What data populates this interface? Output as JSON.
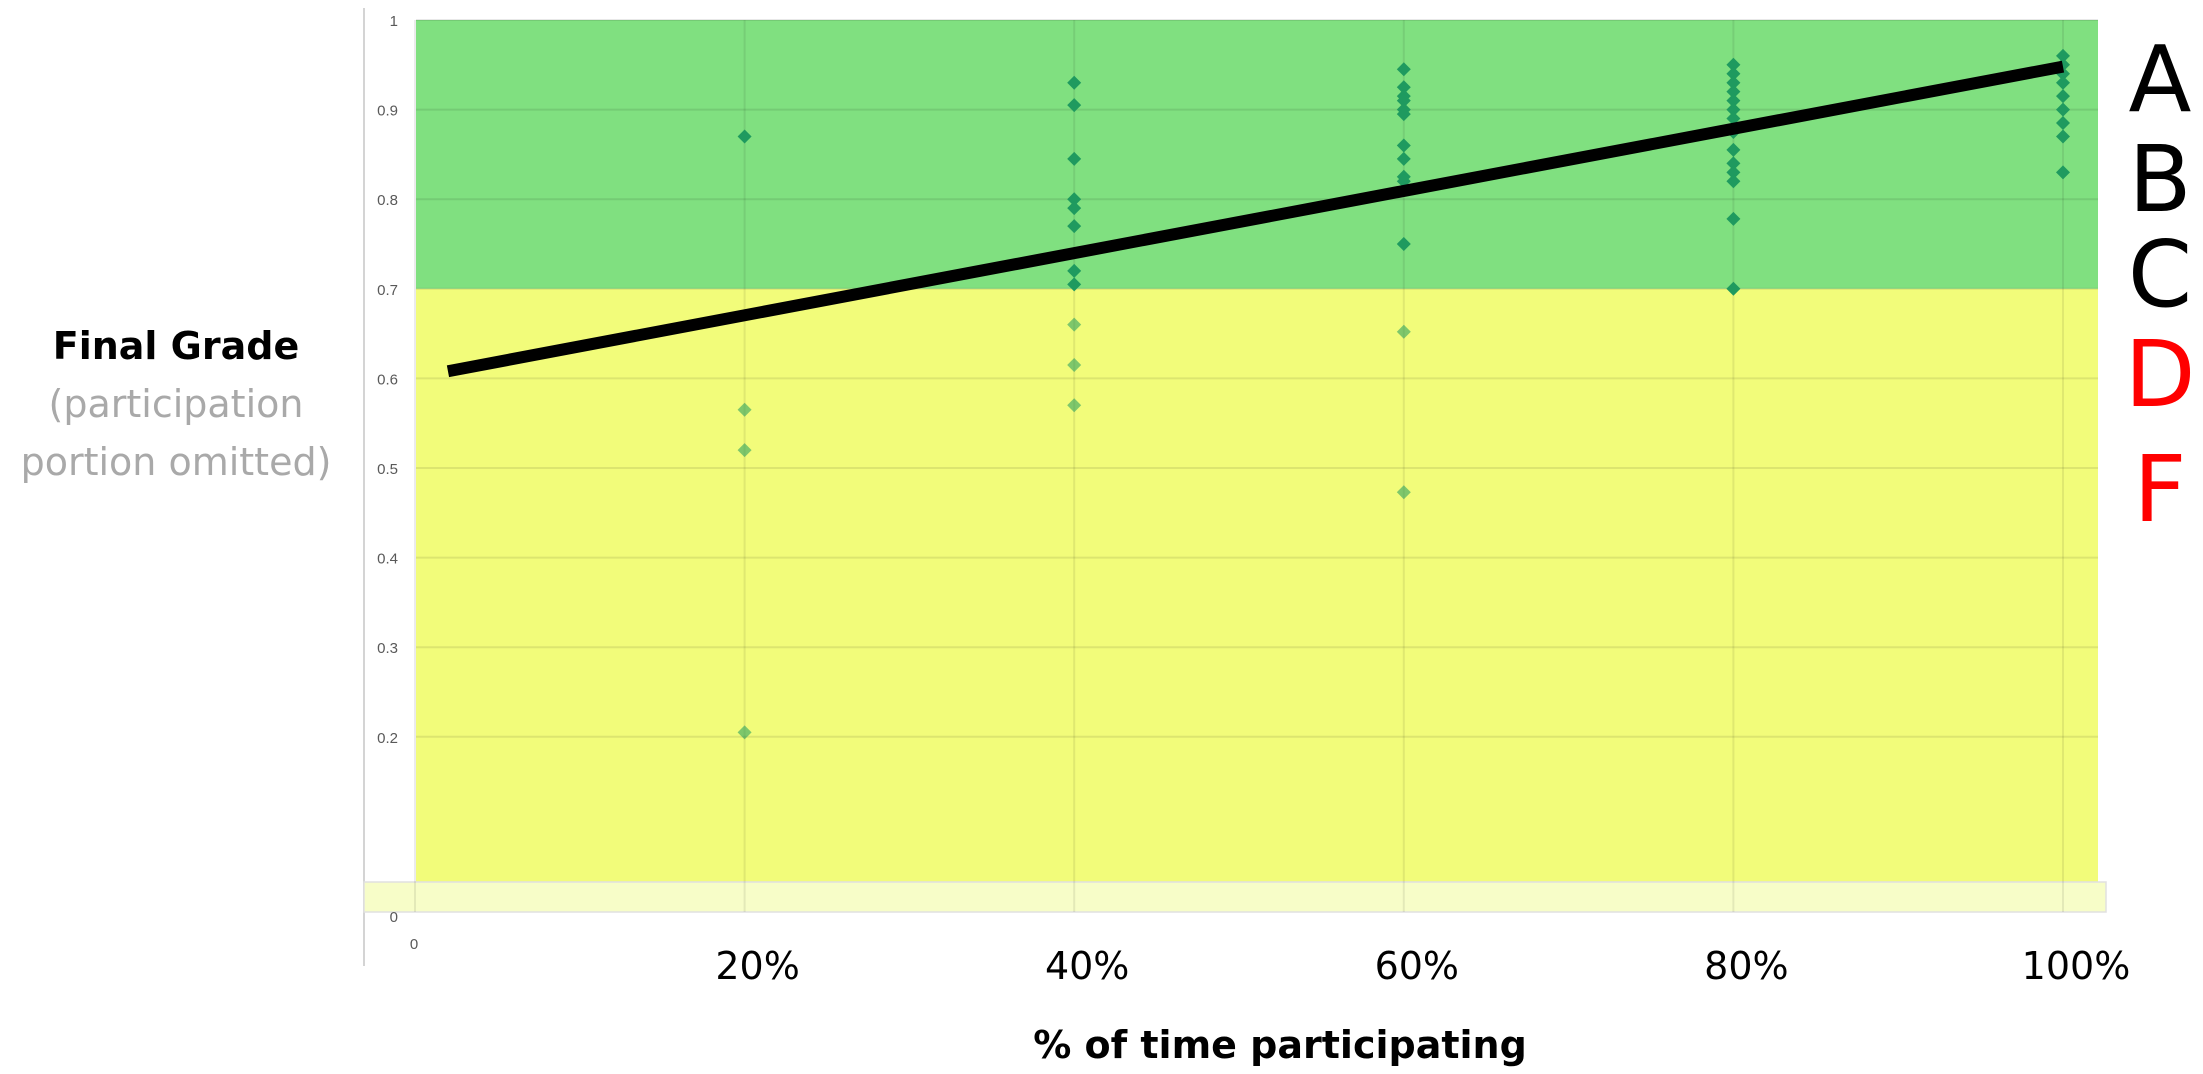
{
  "ylabel": {
    "main": "Final Grade",
    "sub_line1": "(participation",
    "sub_line2": "portion omitted)"
  },
  "xlabel": "% of time participating",
  "grade_scale": [
    {
      "letter": "A",
      "color": "#000000"
    },
    {
      "letter": "B",
      "color": "#000000"
    },
    {
      "letter": "C",
      "color": "#000000"
    },
    {
      "letter": "D",
      "color": "#ff0000"
    },
    {
      "letter": "F",
      "color": "#ff0000"
    }
  ],
  "colors": {
    "passing_band": "#80e080",
    "failing_band": "#f2fc7a",
    "point": "#1f9a5f",
    "trendline": "#000000"
  },
  "chart_data": {
    "type": "scatter",
    "title": "",
    "xlabel": "% of time participating",
    "ylabel": "Final Grade (participation portion omitted)",
    "xlim": [
      0,
      1
    ],
    "ylim": [
      0,
      1
    ],
    "x_ticks": [
      {
        "value": 0,
        "label": "0"
      },
      {
        "value": 0.2,
        "label": "20%"
      },
      {
        "value": 0.4,
        "label": "40%"
      },
      {
        "value": 0.6,
        "label": "60%"
      },
      {
        "value": 0.8,
        "label": "80%"
      },
      {
        "value": 1.0,
        "label": "100%"
      }
    ],
    "y_ticks": [
      {
        "value": 0,
        "label": "0"
      },
      {
        "value": 0.2,
        "label": "0.2"
      },
      {
        "value": 0.3,
        "label": "0.3"
      },
      {
        "value": 0.4,
        "label": "0.4"
      },
      {
        "value": 0.5,
        "label": "0.5"
      },
      {
        "value": 0.6,
        "label": "0.6"
      },
      {
        "value": 0.7,
        "label": "0.7"
      },
      {
        "value": 0.8,
        "label": "0.8"
      },
      {
        "value": 0.9,
        "label": "0.9"
      },
      {
        "value": 1,
        "label": "1"
      }
    ],
    "grid": true,
    "bands": [
      {
        "from": 0.7,
        "to": 1.0,
        "color": "#80e080"
      },
      {
        "from": 0,
        "to": 0.7,
        "color": "#f2fc7a"
      }
    ],
    "points": [
      {
        "x": 0.2,
        "y": 0.87
      },
      {
        "x": 0.2,
        "y": 0.565
      },
      {
        "x": 0.2,
        "y": 0.52
      },
      {
        "x": 0.2,
        "y": 0.205
      },
      {
        "x": 0.4,
        "y": 0.93
      },
      {
        "x": 0.4,
        "y": 0.905
      },
      {
        "x": 0.4,
        "y": 0.845
      },
      {
        "x": 0.4,
        "y": 0.8
      },
      {
        "x": 0.4,
        "y": 0.79
      },
      {
        "x": 0.4,
        "y": 0.77
      },
      {
        "x": 0.4,
        "y": 0.72
      },
      {
        "x": 0.4,
        "y": 0.705
      },
      {
        "x": 0.4,
        "y": 0.66
      },
      {
        "x": 0.4,
        "y": 0.615
      },
      {
        "x": 0.4,
        "y": 0.57
      },
      {
        "x": 0.6,
        "y": 0.945
      },
      {
        "x": 0.6,
        "y": 0.925
      },
      {
        "x": 0.6,
        "y": 0.915
      },
      {
        "x": 0.6,
        "y": 0.91
      },
      {
        "x": 0.6,
        "y": 0.9
      },
      {
        "x": 0.6,
        "y": 0.895
      },
      {
        "x": 0.6,
        "y": 0.86
      },
      {
        "x": 0.6,
        "y": 0.845
      },
      {
        "x": 0.6,
        "y": 0.825
      },
      {
        "x": 0.6,
        "y": 0.82
      },
      {
        "x": 0.6,
        "y": 0.75
      },
      {
        "x": 0.6,
        "y": 0.652
      },
      {
        "x": 0.6,
        "y": 0.473
      },
      {
        "x": 0.8,
        "y": 0.95
      },
      {
        "x": 0.8,
        "y": 0.94
      },
      {
        "x": 0.8,
        "y": 0.93
      },
      {
        "x": 0.8,
        "y": 0.92
      },
      {
        "x": 0.8,
        "y": 0.91
      },
      {
        "x": 0.8,
        "y": 0.9
      },
      {
        "x": 0.8,
        "y": 0.89
      },
      {
        "x": 0.8,
        "y": 0.875
      },
      {
        "x": 0.8,
        "y": 0.855
      },
      {
        "x": 0.8,
        "y": 0.84
      },
      {
        "x": 0.8,
        "y": 0.83
      },
      {
        "x": 0.8,
        "y": 0.82
      },
      {
        "x": 0.8,
        "y": 0.778
      },
      {
        "x": 0.8,
        "y": 0.7
      },
      {
        "x": 1.0,
        "y": 0.96
      },
      {
        "x": 1.0,
        "y": 0.95
      },
      {
        "x": 1.0,
        "y": 0.94
      },
      {
        "x": 1.0,
        "y": 0.93
      },
      {
        "x": 1.0,
        "y": 0.915
      },
      {
        "x": 1.0,
        "y": 0.9
      },
      {
        "x": 1.0,
        "y": 0.885
      },
      {
        "x": 1.0,
        "y": 0.87
      },
      {
        "x": 1.0,
        "y": 0.83
      }
    ],
    "trendline": {
      "x": [
        0.02,
        1.0
      ],
      "y": [
        0.608,
        0.948
      ]
    }
  }
}
